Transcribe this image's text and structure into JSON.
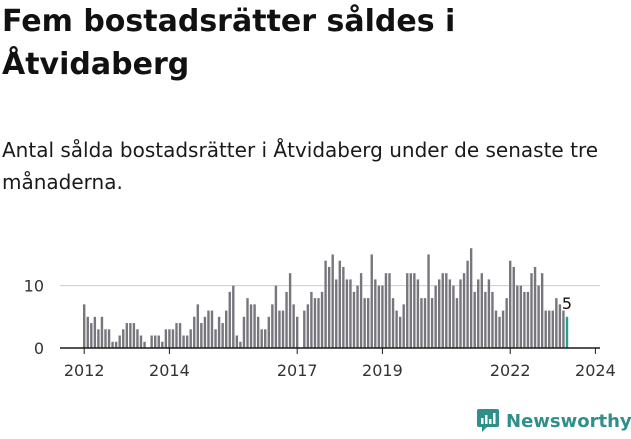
{
  "header": {
    "title": "Fem bostadsrätter såldes i Åtvidaberg",
    "subtitle": "Antal sålda bostadsrätter i Åtvidaberg under de senaste tre månaderna."
  },
  "brand": {
    "name": "Newsworthy",
    "color": "#2f8f8b",
    "icon": "newsworthy-logo-icon"
  },
  "colors": {
    "bar": "#77767c",
    "highlight": "#2a9d93",
    "grid": "#cccccc",
    "axis": "#1a1a1a"
  },
  "chart_data": {
    "type": "bar",
    "start": "2012-01",
    "frequency": "monthly",
    "values": [
      7,
      5,
      4,
      5,
      3,
      5,
      3,
      3,
      1,
      1,
      2,
      3,
      4,
      4,
      4,
      3,
      2,
      1,
      0,
      2,
      2,
      2,
      1,
      3,
      3,
      3,
      4,
      4,
      2,
      2,
      3,
      5,
      7,
      4,
      5,
      6,
      6,
      3,
      5,
      4,
      6,
      9,
      10,
      2,
      1,
      5,
      8,
      7,
      7,
      5,
      3,
      3,
      5,
      7,
      10,
      6,
      6,
      9,
      12,
      7,
      5,
      0,
      6,
      7,
      9,
      8,
      8,
      9,
      14,
      13,
      15,
      11,
      14,
      13,
      11,
      11,
      9,
      10,
      12,
      8,
      8,
      15,
      11,
      10,
      10,
      12,
      12,
      8,
      6,
      5,
      7,
      12,
      12,
      12,
      11,
      8,
      8,
      15,
      8,
      10,
      11,
      12,
      12,
      11,
      10,
      8,
      11,
      12,
      14,
      16,
      9,
      11,
      12,
      9,
      11,
      9,
      6,
      5,
      6,
      8,
      14,
      13,
      10,
      10,
      9,
      9,
      12,
      13,
      10,
      12,
      6,
      6,
      6,
      8,
      7,
      6,
      5
    ],
    "highlight_last": true,
    "last_value_label": "5",
    "x_ticks": [
      "2012",
      "2014",
      "2017",
      "2019",
      "2022",
      "2024"
    ],
    "y_ticks": [
      0,
      10
    ],
    "ylim": [
      0,
      17
    ]
  }
}
